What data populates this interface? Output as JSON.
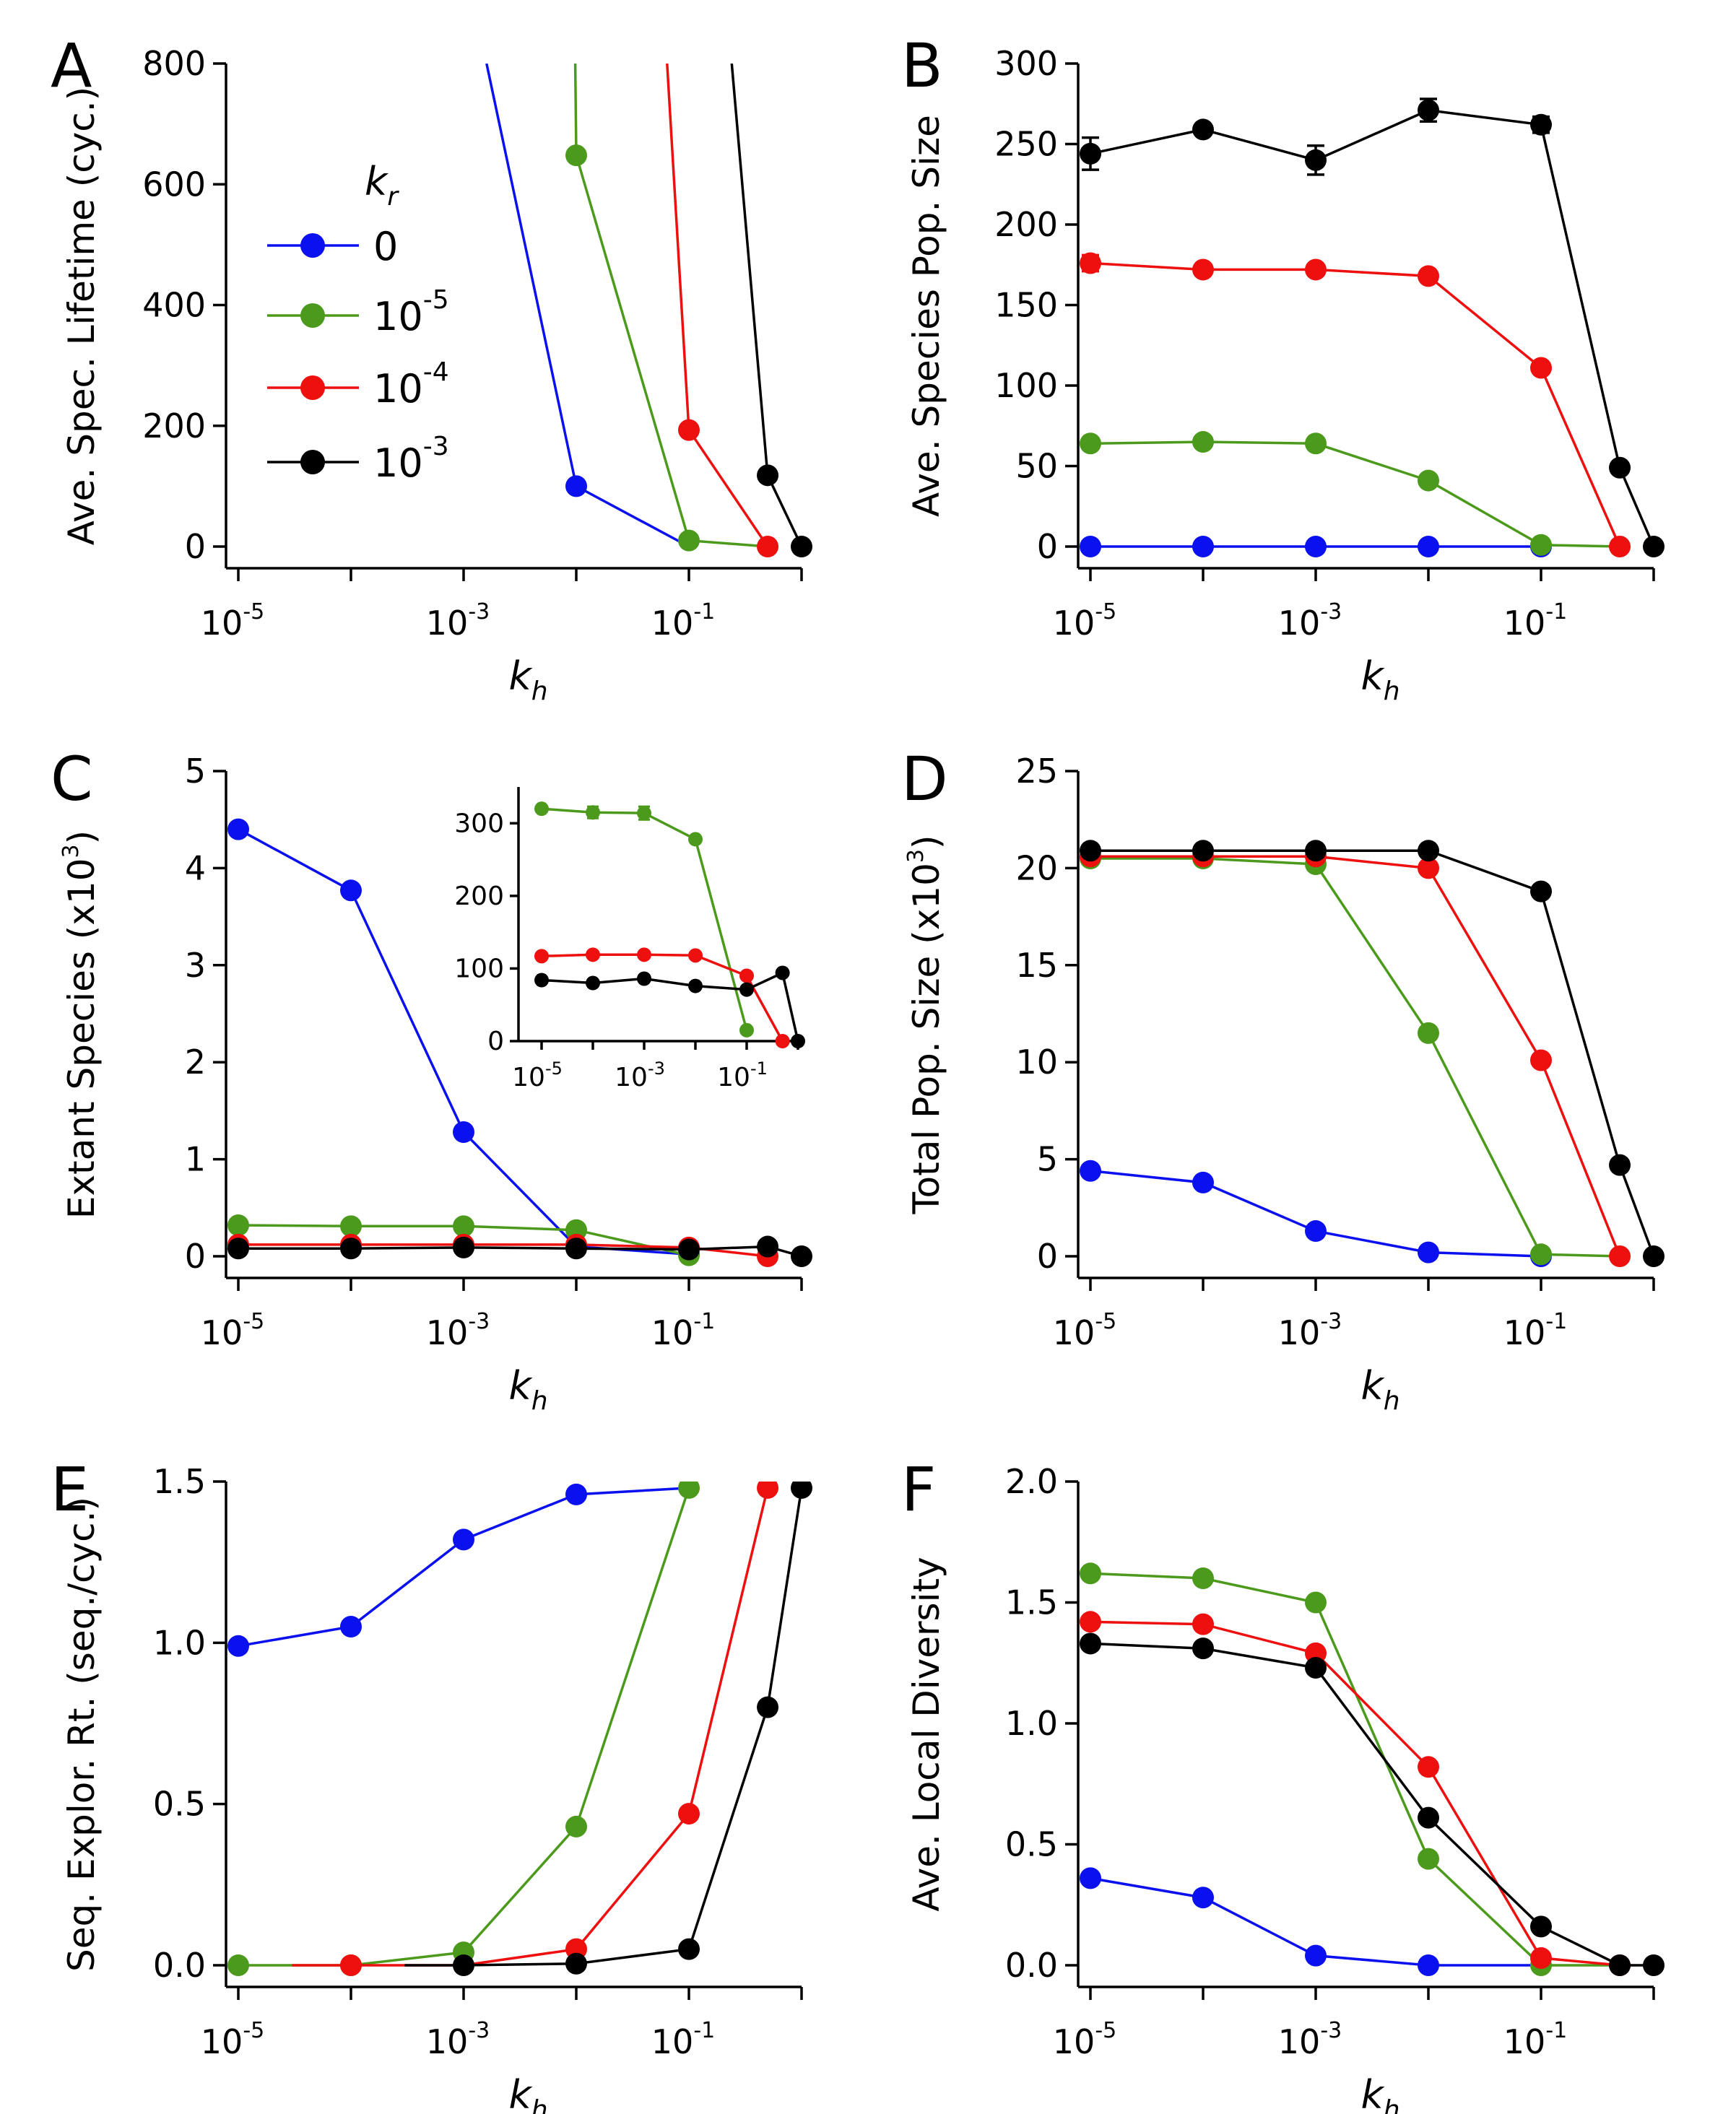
{
  "colors": {
    "blue": "#0a10ee",
    "green": "#4b9a1c",
    "red": "#ee0f0f",
    "black": "#000000"
  },
  "legend": {
    "title": "k",
    "title_sub": "r",
    "entries": [
      {
        "label": "0",
        "exp": "",
        "color": "blue"
      },
      {
        "label": "10",
        "exp": "-5",
        "color": "green"
      },
      {
        "label": "10",
        "exp": "-4",
        "color": "red"
      },
      {
        "label": "10",
        "exp": "-3",
        "color": "black"
      }
    ]
  },
  "x_axis_title": {
    "base": "k",
    "sub": "h"
  },
  "x_tick_labels": [
    {
      "base": "10",
      "exp": "-5",
      "value": 1e-05
    },
    {
      "base": "10",
      "exp": "-3",
      "value": 0.001
    },
    {
      "base": "10",
      "exp": "-1",
      "value": 0.1
    }
  ],
  "chart_data": [
    {
      "panel": "A",
      "type": "line",
      "title": "",
      "ylabel": "Ave. Spec. Lifetime (cyc.)",
      "ylabel_exp": "",
      "ylabel_tail": "",
      "xscale": "log",
      "xlim": [
        5e-06,
        1.2
      ],
      "ylim": [
        -30,
        800
      ],
      "yticks": [
        0,
        200,
        400,
        600,
        800
      ],
      "yticklabels": [
        "0",
        "200",
        "400",
        "600",
        "800"
      ],
      "xticks_minor": [
        1e-05,
        0.0001,
        0.001,
        0.01,
        0.1,
        1
      ],
      "series": [
        {
          "name": "0",
          "color": "blue",
          "x": [
            0.0016,
            0.01,
            0.1
          ],
          "y": [
            800,
            100,
            0
          ],
          "markers": [
            false,
            true,
            false
          ]
        },
        {
          "name": "10^-5",
          "color": "green",
          "x": [
            0.0098,
            0.01,
            0.1,
            0.5
          ],
          "y": [
            800,
            648,
            10,
            0
          ],
          "markers": [
            false,
            true,
            true,
            false
          ]
        },
        {
          "name": "10^-4",
          "color": "red",
          "x": [
            0.064,
            0.1,
            0.5
          ],
          "y": [
            800,
            193,
            0
          ],
          "markers": [
            false,
            true,
            true
          ]
        },
        {
          "name": "10^-3",
          "color": "black",
          "x": [
            0.24,
            0.5,
            1
          ],
          "y": [
            800,
            118,
            0
          ],
          "markers": [
            false,
            true,
            true
          ]
        }
      ]
    },
    {
      "panel": "B",
      "type": "line",
      "title": "",
      "ylabel": "Ave. Species Pop. Size",
      "ylabel_exp": "",
      "ylabel_tail": "",
      "xscale": "log",
      "xlim": [
        5e-06,
        1.2
      ],
      "ylim": [
        -10,
        300
      ],
      "yticks": [
        0,
        50,
        100,
        150,
        200,
        250,
        300
      ],
      "yticklabels": [
        "0",
        "50",
        "100",
        "150",
        "200",
        "250",
        "300"
      ],
      "xticks_minor": [
        1e-05,
        0.0001,
        0.001,
        0.01,
        0.1,
        1
      ],
      "series": [
        {
          "name": "0",
          "color": "blue",
          "x": [
            1e-05,
            0.0001,
            0.001,
            0.01,
            0.1
          ],
          "y": [
            0,
            0,
            0,
            0,
            0
          ]
        },
        {
          "name": "10^-5",
          "color": "green",
          "x": [
            1e-05,
            0.0001,
            0.001,
            0.01,
            0.1,
            0.5
          ],
          "y": [
            64,
            65,
            64,
            41,
            1,
            0
          ],
          "markers": [
            true,
            true,
            true,
            true,
            true,
            false
          ]
        },
        {
          "name": "10^-4",
          "color": "red",
          "x": [
            1e-05,
            0.0001,
            0.001,
            0.01,
            0.1,
            0.5
          ],
          "y": [
            176,
            172,
            172,
            168,
            111,
            0
          ],
          "err": [
            5,
            0,
            0,
            0,
            0,
            0
          ]
        },
        {
          "name": "10^-3",
          "color": "black",
          "x": [
            1e-05,
            0.0001,
            0.001,
            0.01,
            0.1,
            0.5,
            1
          ],
          "y": [
            244,
            259,
            240,
            271,
            262,
            49,
            0
          ],
          "err": [
            10,
            0,
            9,
            7,
            5,
            0,
            0
          ]
        }
      ]
    },
    {
      "panel": "C",
      "type": "line",
      "title": "",
      "ylabel": "Extant Species (x10",
      "ylabel_exp": "3",
      "ylabel_tail": ")",
      "xscale": "log",
      "xlim": [
        5e-06,
        1.2
      ],
      "ylim": [
        -0.15,
        5
      ],
      "yticks": [
        0,
        1,
        2,
        3,
        4,
        5
      ],
      "yticklabels": [
        "0",
        "1",
        "2",
        "3",
        "4",
        "5"
      ],
      "xticks_minor": [
        1e-05,
        0.0001,
        0.001,
        0.01,
        0.1,
        1
      ],
      "series": [
        {
          "name": "0",
          "color": "blue",
          "x": [
            1e-05,
            0.0001,
            0.001,
            0.01,
            0.1
          ],
          "y": [
            4.4,
            3.77,
            1.28,
            0.1,
            0.02
          ],
          "markers": [
            true,
            true,
            true,
            false,
            true
          ]
        },
        {
          "name": "10^-5",
          "color": "green",
          "x": [
            1e-05,
            0.0001,
            0.001,
            0.01,
            0.1
          ],
          "y": [
            0.32,
            0.31,
            0.31,
            0.27,
            0.01
          ]
        },
        {
          "name": "10^-4",
          "color": "red",
          "x": [
            1e-05,
            0.0001,
            0.001,
            0.01,
            0.1,
            0.5
          ],
          "y": [
            0.12,
            0.12,
            0.12,
            0.12,
            0.09,
            0.0
          ]
        },
        {
          "name": "10^-3",
          "color": "black",
          "x": [
            1e-05,
            0.0001,
            0.001,
            0.01,
            0.1,
            0.5,
            1
          ],
          "y": [
            0.08,
            0.08,
            0.09,
            0.08,
            0.07,
            0.1,
            0.0
          ]
        }
      ],
      "inset": {
        "xscale": "log",
        "xlim": [
          5e-06,
          1.2
        ],
        "ylim": [
          0,
          350
        ],
        "yticks": [
          0,
          100,
          200,
          300
        ],
        "yticklabels": [
          "0",
          "100",
          "200",
          "300"
        ],
        "series": [
          {
            "name": "10^-5",
            "color": "green",
            "x": [
              1e-05,
              0.0001,
              0.001,
              0.01,
              0.1
            ],
            "y": [
              320,
              315,
              314,
              278,
              15
            ],
            "err": [
              0,
              8,
              9,
              0,
              0
            ]
          },
          {
            "name": "10^-4",
            "color": "red",
            "x": [
              1e-05,
              0.0001,
              0.001,
              0.01,
              0.1,
              0.5
            ],
            "y": [
              117,
              119,
              119,
              118,
              90,
              0
            ]
          },
          {
            "name": "10^-3",
            "color": "black",
            "x": [
              1e-05,
              0.0001,
              0.001,
              0.01,
              0.1,
              0.5,
              1
            ],
            "y": [
              84,
              80,
              86,
              76,
              71,
              94,
              0
            ]
          }
        ]
      }
    },
    {
      "panel": "D",
      "type": "line",
      "title": "",
      "ylabel": "Total Pop. Size (x10",
      "ylabel_exp": "3",
      "ylabel_tail": ")",
      "xscale": "log",
      "xlim": [
        5e-06,
        1.2
      ],
      "ylim": [
        -1,
        25
      ],
      "yticks": [
        0,
        5,
        10,
        15,
        20,
        25
      ],
      "yticklabels": [
        "0",
        "5",
        "10",
        "15",
        "20",
        "25"
      ],
      "xticks_minor": [
        1e-05,
        0.0001,
        0.001,
        0.01,
        0.1,
        1
      ],
      "series": [
        {
          "name": "0",
          "color": "blue",
          "x": [
            1e-05,
            0.0001,
            0.001,
            0.01,
            0.1
          ],
          "y": [
            4.4,
            3.8,
            1.3,
            0.2,
            0
          ]
        },
        {
          "name": "10^-5",
          "color": "green",
          "x": [
            1e-05,
            0.0001,
            0.001,
            0.01,
            0.1,
            0.5
          ],
          "y": [
            20.5,
            20.5,
            20.2,
            11.5,
            0.1,
            0
          ],
          "markers": [
            true,
            true,
            true,
            true,
            true,
            false
          ]
        },
        {
          "name": "10^-4",
          "color": "red",
          "x": [
            1e-05,
            0.0001,
            0.001,
            0.01,
            0.1,
            0.5
          ],
          "y": [
            20.6,
            20.6,
            20.6,
            20.0,
            10.1,
            0
          ]
        },
        {
          "name": "10^-3",
          "color": "black",
          "x": [
            1e-05,
            0.0001,
            0.001,
            0.01,
            0.1,
            0.5,
            1
          ],
          "y": [
            20.9,
            20.9,
            20.9,
            20.9,
            18.8,
            4.7,
            0
          ]
        }
      ]
    },
    {
      "panel": "E",
      "type": "line",
      "title": "",
      "ylabel": "Seq. Explor. Rt. (seq./cyc.)",
      "ylabel_exp": "",
      "ylabel_tail": "",
      "xscale": "log",
      "xlim": [
        5e-06,
        1.2
      ],
      "ylim": [
        -0.06,
        1.5
      ],
      "yticks": [
        0.0,
        0.5,
        1.0,
        1.5
      ],
      "yticklabels": [
        "0.0",
        "0.5",
        "1.0",
        "1.5"
      ],
      "xticks_minor": [
        1e-05,
        0.0001,
        0.001,
        0.01,
        0.1,
        1
      ],
      "series": [
        {
          "name": "0",
          "color": "blue",
          "x": [
            1e-05,
            0.0001,
            0.001,
            0.01,
            0.1
          ],
          "y": [
            0.99,
            1.05,
            1.32,
            1.46,
            1.48
          ],
          "markers": [
            true,
            true,
            true,
            true,
            false
          ]
        },
        {
          "name": "10^-5",
          "color": "green",
          "x": [
            1e-05,
            0.0001,
            0.001,
            0.01,
            0.1
          ],
          "y": [
            0.0,
            0.0,
            0.04,
            0.43,
            1.48
          ]
        },
        {
          "name": "10^-4",
          "color": "red",
          "x": [
            3e-05,
            0.0001,
            0.001,
            0.01,
            0.1,
            0.5
          ],
          "y": [
            0.0,
            0.0,
            0.0,
            0.05,
            0.47,
            1.48
          ],
          "markers": [
            false,
            true,
            false,
            true,
            true,
            true
          ]
        },
        {
          "name": "10^-3",
          "color": "black",
          "x": [
            0.0003,
            0.001,
            0.01,
            0.1,
            0.5,
            1
          ],
          "y": [
            0.0,
            0.0,
            0.005,
            0.05,
            0.8,
            1.48
          ],
          "markers": [
            false,
            true,
            true,
            true,
            true,
            true
          ]
        }
      ]
    },
    {
      "panel": "F",
      "type": "line",
      "title": "",
      "ylabel": "Ave. Local Diversity",
      "ylabel_exp": "",
      "ylabel_tail": "",
      "xscale": "log",
      "xlim": [
        5e-06,
        1.2
      ],
      "ylim": [
        -0.08,
        2.0
      ],
      "yticks": [
        0.0,
        0.5,
        1.0,
        1.5,
        2.0
      ],
      "yticklabels": [
        "0.0",
        "0.5",
        "1.0",
        "1.5",
        "2.0"
      ],
      "xticks_minor": [
        1e-05,
        0.0001,
        0.001,
        0.01,
        0.1,
        1
      ],
      "series": [
        {
          "name": "0",
          "color": "blue",
          "x": [
            1e-05,
            0.0001,
            0.001,
            0.01,
            0.1
          ],
          "y": [
            0.36,
            0.28,
            0.04,
            0.0,
            0.0
          ],
          "markers": [
            true,
            true,
            true,
            true,
            false
          ]
        },
        {
          "name": "10^-5",
          "color": "green",
          "x": [
            1e-05,
            0.0001,
            0.001,
            0.01,
            0.1,
            0.5
          ],
          "y": [
            1.62,
            1.6,
            1.5,
            0.44,
            0.0,
            0.0
          ],
          "markers": [
            true,
            true,
            true,
            true,
            true,
            false
          ]
        },
        {
          "name": "10^-4",
          "color": "red",
          "x": [
            1e-05,
            0.0001,
            0.001,
            0.01,
            0.1,
            0.5
          ],
          "y": [
            1.42,
            1.41,
            1.29,
            0.82,
            0.03,
            0.0
          ]
        },
        {
          "name": "10^-3",
          "color": "black",
          "x": [
            1e-05,
            0.0001,
            0.001,
            0.01,
            0.1,
            0.5,
            1
          ],
          "y": [
            1.33,
            1.31,
            1.23,
            0.61,
            0.16,
            0.0,
            0.0
          ]
        }
      ]
    }
  ]
}
